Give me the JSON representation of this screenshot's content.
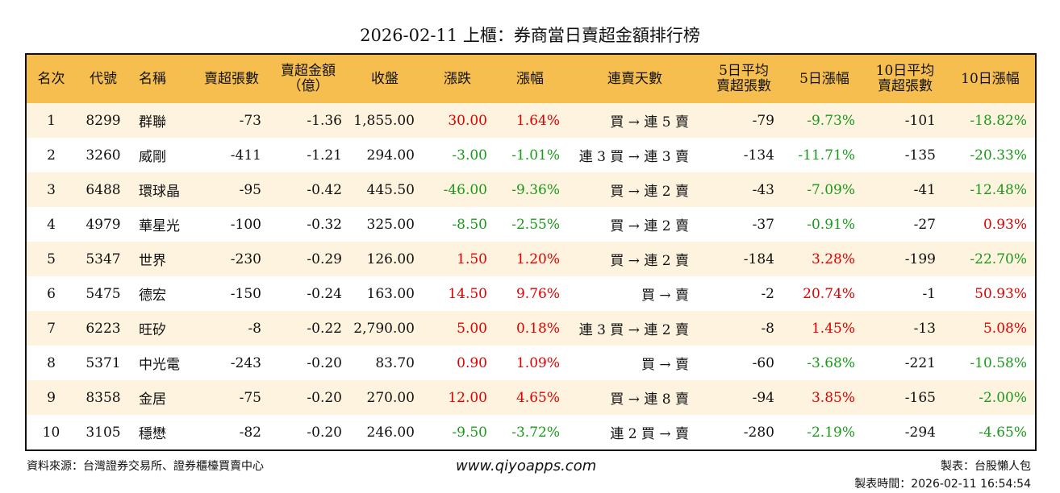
{
  "title": "2026-02-11 上櫃：券商當日賣超金額排行榜",
  "colors": {
    "header_bg": "#F5BE4E",
    "row_alt_bg": "#FDF3DF",
    "up": "#E00000",
    "down": "#1A9A1A"
  },
  "headers": [
    "名次",
    "代號",
    "名稱",
    "賣超張數",
    "賣超金額\n（億）",
    "收盤",
    "漲跌",
    "漲幅",
    "連賣天數",
    "5日平均\n賣超張數",
    "5日漲幅",
    "10日平均\n賣超張數",
    "10日漲幅"
  ],
  "rows": [
    [
      "1",
      "8299",
      "群聯",
      "-73",
      "-1.36",
      "1,855.00",
      "30.00",
      "1.64%",
      "買 → 連 5 賣",
      "-79",
      "-9.73%",
      "-101",
      "-18.82%"
    ],
    [
      "2",
      "3260",
      "威剛",
      "-411",
      "-1.21",
      "294.00",
      "-3.00",
      "-1.01%",
      "連 3 買 → 連 3 賣",
      "-134",
      "-11.71%",
      "-135",
      "-20.33%"
    ],
    [
      "3",
      "6488",
      "環球晶",
      "-95",
      "-0.42",
      "445.50",
      "-46.00",
      "-9.36%",
      "買 → 連 2 賣",
      "-43",
      "-7.09%",
      "-41",
      "-12.48%"
    ],
    [
      "4",
      "4979",
      "華星光",
      "-100",
      "-0.32",
      "325.00",
      "-8.50",
      "-2.55%",
      "買 → 連 2 賣",
      "-37",
      "-0.91%",
      "-27",
      "0.93%"
    ],
    [
      "5",
      "5347",
      "世界",
      "-230",
      "-0.29",
      "126.00",
      "1.50",
      "1.20%",
      "買 → 連 2 賣",
      "-184",
      "3.28%",
      "-199",
      "-22.70%"
    ],
    [
      "6",
      "5475",
      "德宏",
      "-150",
      "-0.24",
      "163.00",
      "14.50",
      "9.76%",
      "買 → 賣",
      "-2",
      "20.74%",
      "-1",
      "50.93%"
    ],
    [
      "7",
      "6223",
      "旺矽",
      "-8",
      "-0.22",
      "2,790.00",
      "5.00",
      "0.18%",
      "連 3 買 → 連 2 賣",
      "-8",
      "1.45%",
      "-13",
      "5.08%"
    ],
    [
      "8",
      "5371",
      "中光電",
      "-243",
      "-0.20",
      "83.70",
      "0.90",
      "1.09%",
      "買 → 賣",
      "-60",
      "-3.68%",
      "-221",
      "-10.58%"
    ],
    [
      "9",
      "8358",
      "金居",
      "-75",
      "-0.20",
      "270.00",
      "12.00",
      "4.65%",
      "買 → 連 8 賣",
      "-94",
      "3.85%",
      "-165",
      "-2.00%"
    ],
    [
      "10",
      "3105",
      "穩懋",
      "-82",
      "-0.20",
      "246.00",
      "-9.50",
      "-3.72%",
      "連 2 買 → 賣",
      "-280",
      "-2.19%",
      "-294",
      "-4.65%"
    ]
  ],
  "footer": {
    "source": "資料來源：台灣證券交易所、證券櫃檯買賣中心",
    "url": "www.qiyoapps.com",
    "maker": "製表：台股懶人包",
    "time": "製表時間：2026-02-11 16:54:54"
  }
}
